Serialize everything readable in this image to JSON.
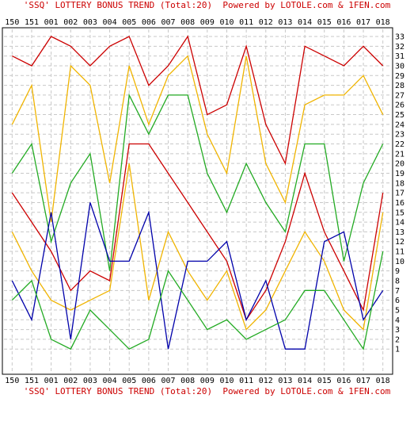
{
  "caption_top": "'SSQ' LOTTERY BONUS TREND (Total:20)  Powered by LOTOLE.com & 1FEN.com",
  "caption_bottom": "'SSQ' LOTTERY BONUS TREND (Total:20)  Powered by LOTOLE.com & 1FEN.com",
  "chart_data": {
    "type": "line",
    "title": "'SSQ' LOTTERY BONUS TREND (Total:20)",
    "categories": [
      "150",
      "151",
      "001",
      "002",
      "003",
      "004",
      "005",
      "006",
      "007",
      "008",
      "009",
      "010",
      "011",
      "012",
      "013",
      "014",
      "015",
      "016",
      "017",
      "018"
    ],
    "y_ticks": [
      1,
      2,
      3,
      4,
      5,
      6,
      7,
      8,
      9,
      10,
      11,
      12,
      13,
      14,
      15,
      16,
      17,
      18,
      19,
      20,
      21,
      22,
      23,
      24,
      25,
      26,
      27,
      28,
      29,
      30,
      31,
      32,
      33
    ],
    "ylim": [
      1,
      33
    ],
    "grid": true,
    "series": [
      {
        "color": "#cc0000",
        "values": [
          31,
          30,
          33,
          32,
          30,
          32,
          33,
          28,
          30,
          33,
          25,
          26,
          32,
          24,
          20,
          32,
          31,
          30,
          32,
          30
        ]
      },
      {
        "color": "#f0b400",
        "values": [
          24,
          28,
          14,
          30,
          28,
          18,
          30,
          24,
          29,
          31,
          23,
          19,
          31,
          20,
          16,
          26,
          27,
          27,
          29,
          25
        ]
      },
      {
        "color": "#22aa22",
        "values": [
          19,
          22,
          12,
          18,
          21,
          9,
          27,
          23,
          27,
          27,
          19,
          15,
          20,
          16,
          13,
          22,
          22,
          10,
          18,
          22
        ]
      },
      {
        "color": "#cc0000",
        "values": [
          17,
          14,
          11,
          7,
          9,
          8,
          22,
          22,
          19,
          16,
          13,
          10,
          4,
          7,
          12,
          19,
          13,
          9,
          5,
          17
        ]
      },
      {
        "color": "#f0b400",
        "values": [
          13,
          9,
          6,
          5,
          6,
          7,
          20,
          6,
          13,
          9,
          6,
          9,
          3,
          5,
          9,
          13,
          10,
          5,
          3,
          15
        ]
      },
      {
        "color": "#0000aa",
        "values": [
          8,
          4,
          15,
          2,
          16,
          10,
          10,
          15,
          1,
          10,
          10,
          12,
          4,
          8,
          1,
          1,
          12,
          13,
          4,
          7
        ]
      },
      {
        "color": "#22aa22",
        "values": [
          6,
          8,
          2,
          1,
          5,
          3,
          1,
          2,
          9,
          6,
          3,
          4,
          2,
          3,
          4,
          7,
          7,
          4,
          1,
          11
        ]
      }
    ]
  }
}
